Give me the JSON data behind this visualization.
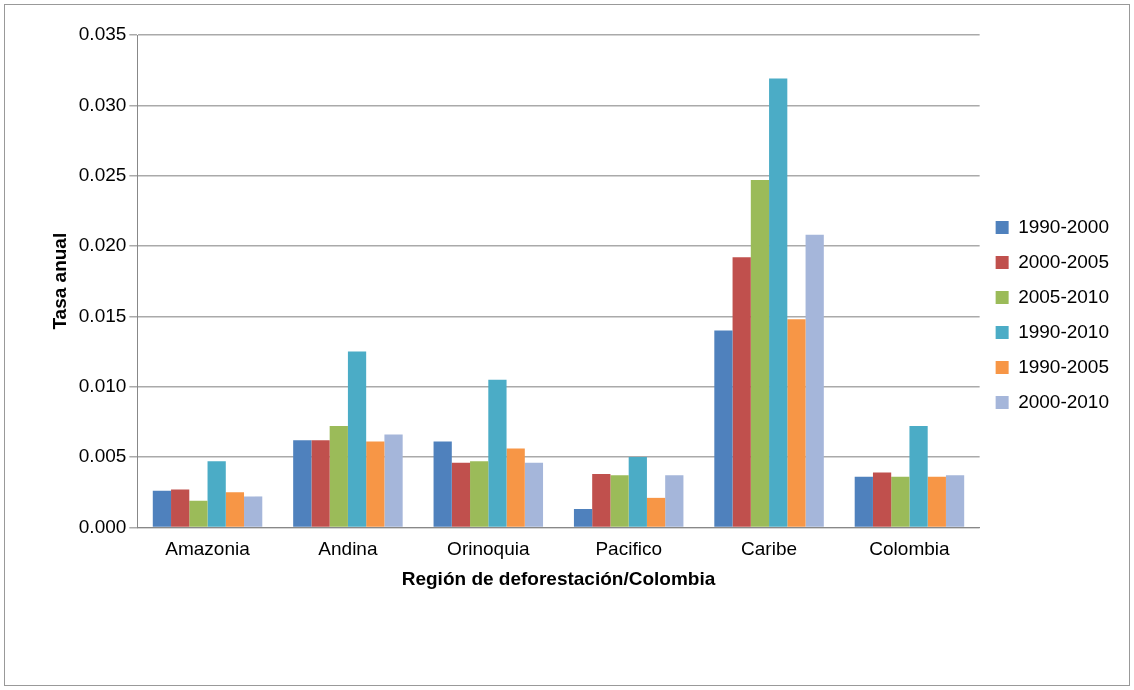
{
  "chart_data": {
    "type": "bar",
    "xlabel": "Región de deforestación/Colombia",
    "ylabel": "Tasa anual",
    "categories": [
      "Amazonia",
      "Andina",
      "Orinoquia",
      "Pacifico",
      "Caribe",
      "Colombia"
    ],
    "series": [
      {
        "name": "1990-2000",
        "color": "#4f81bd",
        "values": [
          0.0026,
          0.0062,
          0.0061,
          0.0013,
          0.014,
          0.0036
        ]
      },
      {
        "name": "2000-2005",
        "color": "#c0504d",
        "values": [
          0.0027,
          0.0062,
          0.0046,
          0.0038,
          0.0192,
          0.0039
        ]
      },
      {
        "name": "2005-2010",
        "color": "#9bbb59",
        "values": [
          0.0019,
          0.0072,
          0.0047,
          0.0037,
          0.0247,
          0.0036
        ]
      },
      {
        "name": "1990-2010",
        "color": "#4bacc6",
        "values": [
          0.0047,
          0.0125,
          0.0105,
          0.005,
          0.0319,
          0.0072
        ]
      },
      {
        "name": "1990-2005",
        "color": "#f79646",
        "values": [
          0.0025,
          0.0061,
          0.0056,
          0.0021,
          0.0148,
          0.0036
        ]
      },
      {
        "name": "2000-2010",
        "color": "#a5b6da",
        "values": [
          0.0022,
          0.0066,
          0.0046,
          0.0037,
          0.0208,
          0.0037
        ]
      }
    ],
    "ylim": [
      0,
      0.035
    ],
    "yticks": [
      {
        "value": 0,
        "label": "0.000"
      },
      {
        "value": 0.005,
        "label": "0.005"
      },
      {
        "value": 0.01,
        "label": "0.010"
      },
      {
        "value": 0.015,
        "label": "0.015"
      },
      {
        "value": 0.02,
        "label": "0.020"
      },
      {
        "value": 0.025,
        "label": "0.025"
      },
      {
        "value": 0.03,
        "label": "0.030"
      },
      {
        "value": 0.035,
        "label": "0.035"
      }
    ],
    "grid": "y",
    "legend": "right"
  }
}
